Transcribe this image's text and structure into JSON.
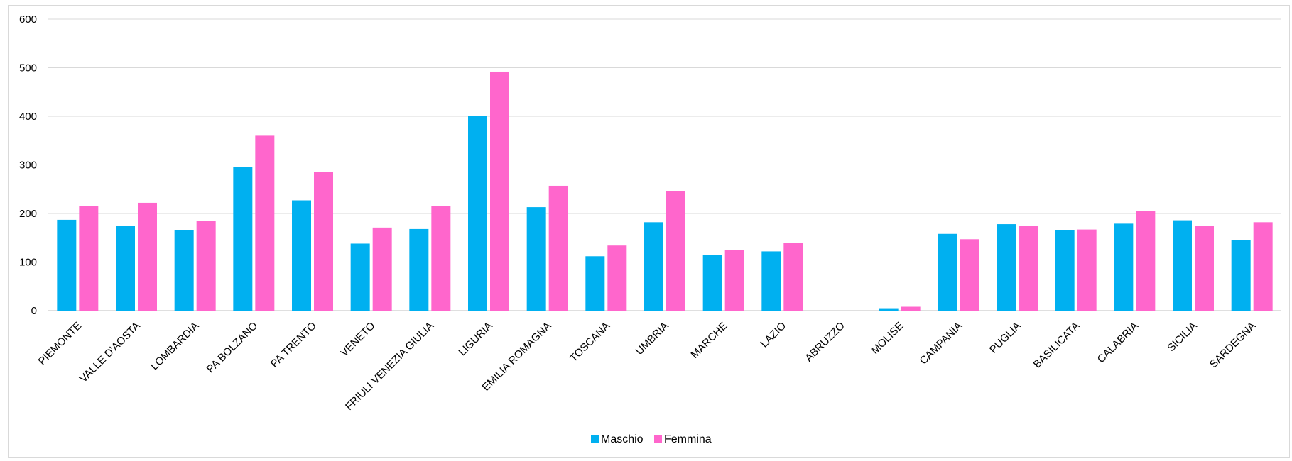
{
  "chart_data": {
    "type": "bar",
    "title": "",
    "xlabel": "",
    "ylabel": "",
    "ylim": [
      0,
      600
    ],
    "yticks": [
      0,
      100,
      200,
      300,
      400,
      500,
      600
    ],
    "grid": true,
    "legend_position": "bottom",
    "categories": [
      "PIEMONTE",
      "VALLE D'AOSTA",
      "LOMBARDIA",
      "PA BOLZANO",
      "PA TRENTO",
      "VENETO",
      "FRIULI VENEZIA GIULIA",
      "LIGURIA",
      "EMILIA ROMAGNA",
      "TOSCANA",
      "UMBRIA",
      "MARCHE",
      "LAZIO",
      "ABRUZZO",
      "MOLISE",
      "CAMPANIA",
      "PUGLIA",
      "BASILICATA",
      "CALABRIA",
      "SICILIA",
      "SARDEGNA"
    ],
    "series": [
      {
        "name": "Maschio",
        "color": "#00b0f0",
        "values": [
          187,
          175,
          165,
          295,
          227,
          138,
          168,
          401,
          213,
          112,
          182,
          114,
          122,
          0,
          5,
          158,
          178,
          166,
          179,
          186,
          145
        ]
      },
      {
        "name": "Femmina",
        "color": "#ff66cc",
        "values": [
          216,
          222,
          185,
          360,
          286,
          171,
          216,
          492,
          257,
          134,
          246,
          125,
          139,
          0,
          8,
          147,
          175,
          167,
          205,
          175,
          182
        ]
      }
    ]
  },
  "colors": {
    "grid": "#d9d9d9",
    "axis": "#bfbfbf"
  }
}
